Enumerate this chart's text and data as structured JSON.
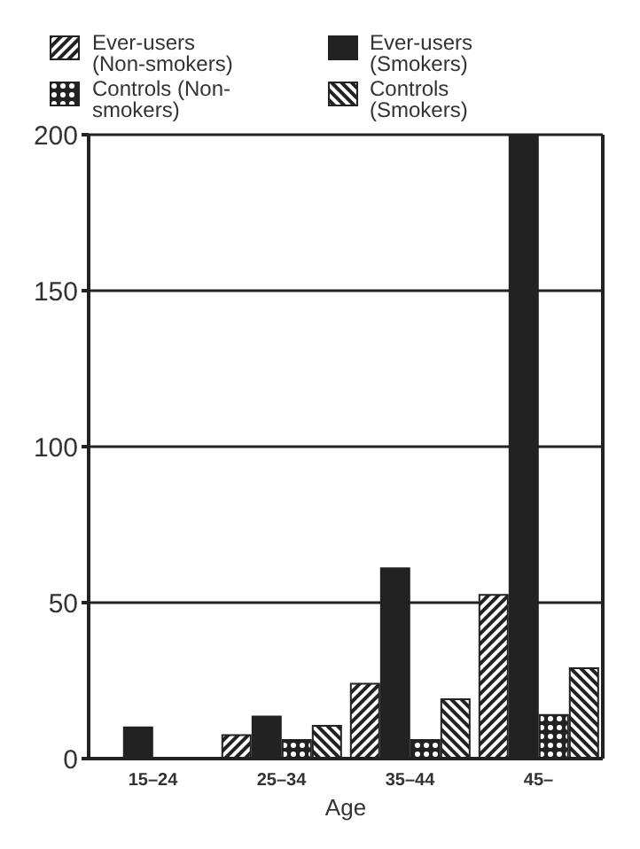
{
  "chart_data": {
    "type": "bar",
    "xlabel": "Age",
    "categories": [
      "15–24",
      "25–34",
      "35–44",
      "45–"
    ],
    "series": [
      {
        "name": "Ever-users (Non-smokers)",
        "color": "#222222",
        "values": [
          null,
          7.5,
          24,
          52.5
        ]
      },
      {
        "name": "Ever-users (Smokers)",
        "color": "#222222",
        "values": [
          10,
          13.5,
          61,
          200
        ]
      },
      {
        "name": "Controls (Non-smokers)",
        "color": "#222222",
        "values": [
          null,
          6,
          6,
          14
        ]
      },
      {
        "name": "Controls (Smokers)",
        "color": "#222222",
        "values": [
          null,
          10.5,
          19,
          29
        ]
      }
    ],
    "ylim": [
      0,
      200
    ],
    "yticks": [
      0,
      50,
      100,
      150,
      200
    ],
    "grid": "y",
    "legend": "top"
  }
}
